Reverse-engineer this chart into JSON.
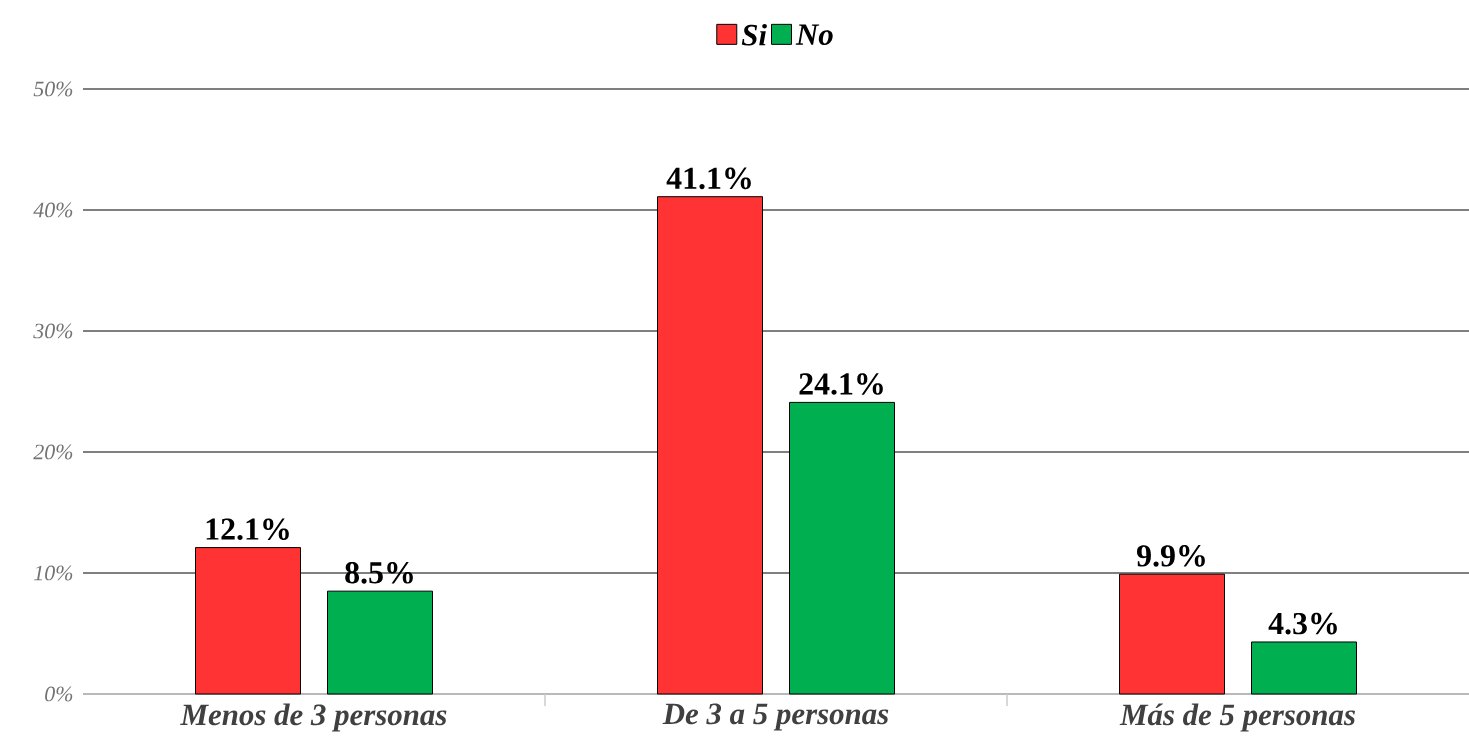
{
  "chart_data": {
    "type": "bar",
    "categories": [
      "Menos de 3 personas",
      "De 3 a 5 personas",
      "Más de 5 personas"
    ],
    "series": [
      {
        "name": "Si",
        "color": "#ff3333",
        "values": [
          12.1,
          41.1,
          9.9
        ],
        "value_labels": [
          "12.1%",
          "41.1%",
          "9.9%"
        ]
      },
      {
        "name": "No",
        "color": "#00b050",
        "values": [
          8.5,
          24.1,
          4.3
        ],
        "value_labels": [
          "8.5%",
          "24.1%",
          "4.3%"
        ]
      }
    ],
    "ylim": [
      0,
      50
    ],
    "yticks": [
      {
        "value": 0,
        "label": "0%"
      },
      {
        "value": 10,
        "label": "10%"
      },
      {
        "value": 20,
        "label": "20%"
      },
      {
        "value": 30,
        "label": "30%"
      },
      {
        "value": 40,
        "label": "40%"
      },
      {
        "value": 50,
        "label": "50%"
      }
    ],
    "grid": "y",
    "legend": "top"
  }
}
